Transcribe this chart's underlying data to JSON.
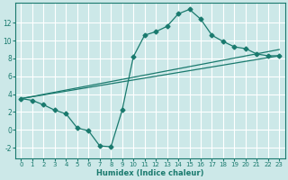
{
  "xlabel": "Humidex (Indice chaleur)",
  "bg_color": "#cce8e8",
  "grid_color": "#ffffff",
  "line_color": "#1a7a6e",
  "xlim": [
    -0.5,
    23.5
  ],
  "ylim": [
    -3.2,
    14.2
  ],
  "yticks": [
    -2,
    0,
    2,
    4,
    6,
    8,
    10,
    12
  ],
  "xticks": [
    0,
    1,
    2,
    3,
    4,
    5,
    6,
    7,
    8,
    9,
    10,
    11,
    12,
    13,
    14,
    15,
    16,
    17,
    18,
    19,
    20,
    21,
    22,
    23
  ],
  "line1_x": [
    0,
    1,
    2,
    3,
    4,
    5,
    6,
    7,
    8,
    9,
    10,
    11,
    12,
    13,
    14,
    15,
    16,
    17,
    18,
    19,
    20,
    21,
    22,
    23
  ],
  "line1_y": [
    3.5,
    3.3,
    2.8,
    2.2,
    1.8,
    0.2,
    -0.1,
    -1.8,
    -1.9,
    2.2,
    8.2,
    10.6,
    11.0,
    11.6,
    13.0,
    13.5,
    12.4,
    10.6,
    9.9,
    9.3,
    9.1,
    8.5,
    8.3,
    8.3
  ],
  "line2_x": [
    0,
    23
  ],
  "line2_y": [
    3.5,
    9.0
  ],
  "line3_x": [
    0,
    23
  ],
  "line3_y": [
    3.5,
    8.3
  ],
  "marker_size": 2.5,
  "lw": 0.9,
  "xlabel_fontsize": 6,
  "tick_fontsize": 5
}
